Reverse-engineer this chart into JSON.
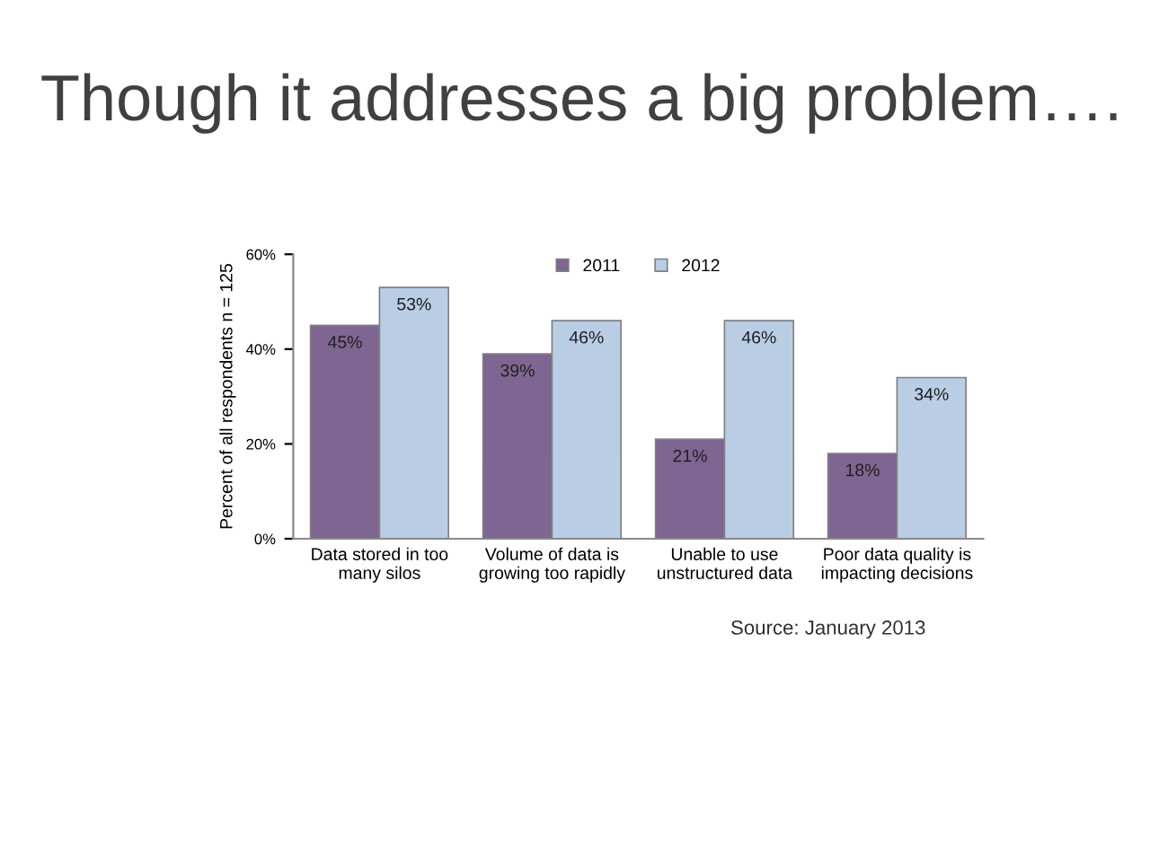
{
  "chart_data": {
    "type": "bar",
    "title": "Though it addresses a big problem….",
    "ylabel": "Percent of all respondents n = 125",
    "categories": [
      "Data stored in too\nmany silos",
      "Volume of data is\ngrowing too rapidly",
      "Unable to use\nunstructured data",
      "Poor data quality is\nimpacting decisions"
    ],
    "series": [
      {
        "name": "2011",
        "color": "#7f6591",
        "values": [
          45,
          39,
          21,
          18
        ],
        "value_labels": [
          "45%",
          "39%",
          "21%",
          "18%"
        ]
      },
      {
        "name": "2012",
        "color": "#b9cde5",
        "values": [
          53,
          46,
          46,
          34
        ],
        "value_labels": [
          "53%",
          "46%",
          "46%",
          "34%"
        ]
      }
    ],
    "ylim": [
      0,
      60
    ],
    "yticks": [
      {
        "value": 0,
        "label": "0%"
      },
      {
        "value": 20,
        "label": "20%"
      },
      {
        "value": 40,
        "label": "40%"
      },
      {
        "value": 60,
        "label": "60%"
      }
    ],
    "grid": false,
    "legend": "top",
    "annotations": [
      "Source: January 2013"
    ]
  }
}
